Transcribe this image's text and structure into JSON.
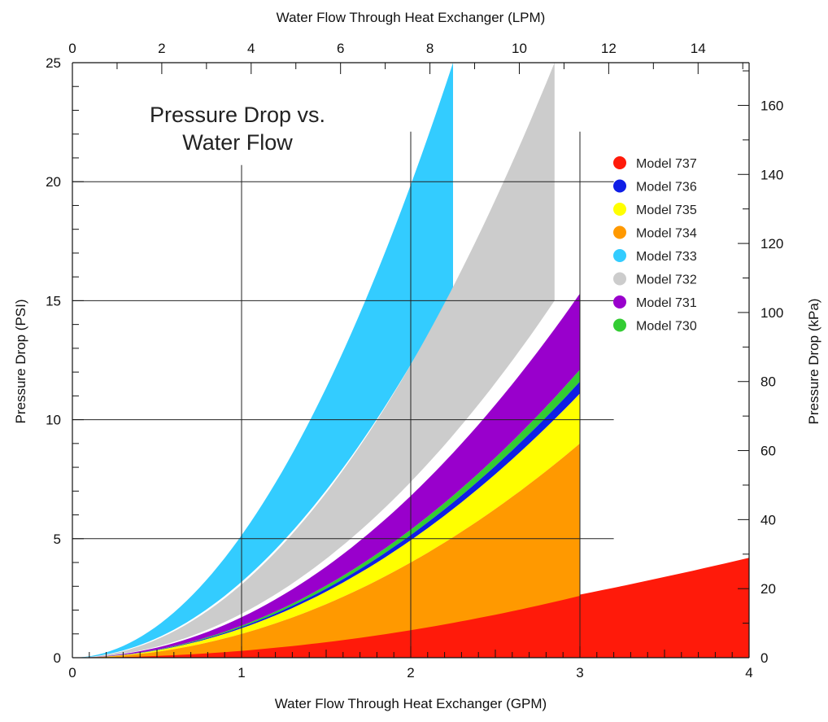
{
  "chart_data": {
    "type": "area",
    "title_lines": [
      "Pressure Drop vs.",
      "Water Flow"
    ],
    "x_bottom": {
      "label": "Water Flow Through Heat Exchanger (GPM)",
      "range": [
        0,
        4
      ],
      "ticks": [
        0,
        1,
        2,
        3,
        4
      ]
    },
    "x_top": {
      "label": "Water Flow Through Heat Exchanger (LPM)",
      "range": [
        0,
        15.14
      ],
      "ticks": [
        0,
        2,
        4,
        6,
        8,
        10,
        12,
        14
      ]
    },
    "y_left": {
      "label": "Pressure Drop (PSI)",
      "range": [
        0,
        25
      ],
      "ticks": [
        0,
        5,
        10,
        15,
        20,
        25
      ]
    },
    "y_right": {
      "label": "Pressure Drop (kPa)",
      "range": [
        0,
        172.4
      ],
      "ticks": [
        0,
        20,
        40,
        60,
        80,
        100,
        120,
        140,
        160
      ]
    },
    "grid": true,
    "legend_position": "top-right",
    "series": [
      {
        "name": "Model 737",
        "color": "#ff1a0a",
        "x": [
          0,
          4
        ],
        "upper_at_x1": 0,
        "upper_at_x2": 4.2,
        "lower": 0,
        "power": 1.6
      },
      {
        "name": "Model 736",
        "color": "#0f1ee6",
        "x": [
          0,
          3
        ],
        "lower_end": 11.1,
        "upper_end": 11.6,
        "power": 2.0
      },
      {
        "name": "Model 735",
        "color": "#ffff00",
        "x": [
          0,
          3
        ],
        "lower_end": 9.0,
        "upper_end": 11.1,
        "power": 2.0
      },
      {
        "name": "Model 734",
        "color": "#ff9900",
        "x": [
          0,
          3
        ],
        "lower_end": 2.6,
        "upper_end": 9.0,
        "power": 2.0
      },
      {
        "name": "Model 733",
        "color": "#33ccff",
        "x": [
          0,
          2.25
        ],
        "lower_end": 15.5,
        "upper_end": 25.0,
        "power": 1.95
      },
      {
        "name": "Model 732",
        "color": "#cccccc",
        "x": [
          0,
          2.85
        ],
        "lower_end": 15.0,
        "upper_end": 25.0,
        "power": 2.0
      },
      {
        "name": "Model 731",
        "color": "#9900cc",
        "x": [
          0,
          3
        ],
        "lower_end": 12.1,
        "upper_end": 15.3,
        "power": 2.0
      },
      {
        "name": "Model 730",
        "color": "#33cc33",
        "x": [
          0,
          3
        ],
        "lower_end": 11.6,
        "upper_end": 12.1,
        "power": 2.0
      }
    ]
  }
}
